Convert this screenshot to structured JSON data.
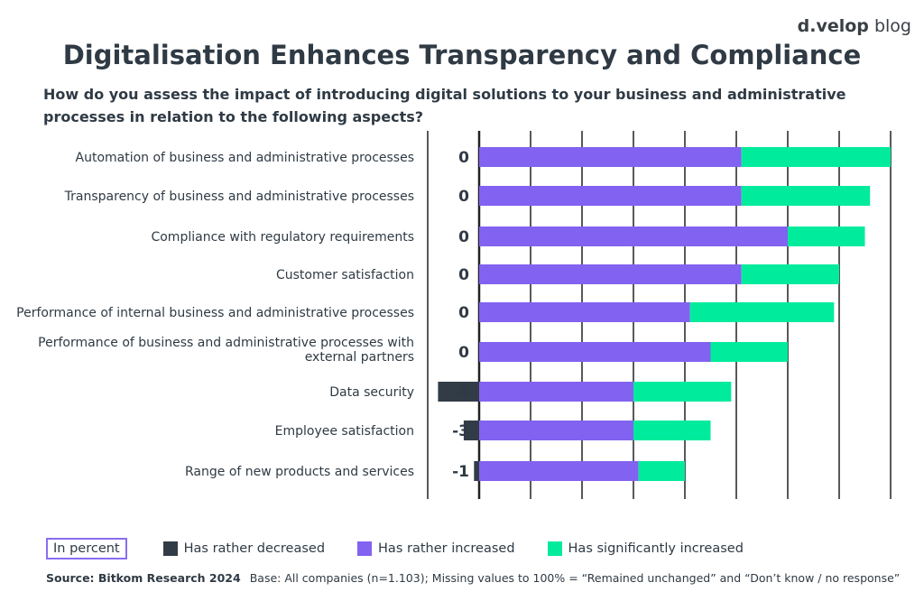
{
  "brand": {
    "logo_text_bold": "d.velop",
    "logo_text": "blog"
  },
  "colors": {
    "decreased": "#323c46",
    "rather_increased": "#8262f0",
    "significantly_increased": "#00eb9c",
    "grid": "#222222"
  },
  "legend": {
    "in_percent": "In percent",
    "items": [
      "Has rather decreased",
      "Has rather increased",
      "Has significantly increased"
    ]
  },
  "source": {
    "label": "Source: Bitkom Research 2024",
    "note": "Base: All companies (n=1.103); Missing values to 100% = “Remained unchanged” and “Don’t know / no response”"
  },
  "chart_data": {
    "type": "bar",
    "orientation": "horizontal-stacked-diverging",
    "title": "Digitalisation Enhances Transparency and Compliance",
    "subtitle": "How do you assess the impact of introducing digital solutions to your business and administrative processes in relation to the following aspects?",
    "xlim": [
      -10,
      80
    ],
    "grid": true,
    "legend_placement": "bottom",
    "categories": [
      [
        "Automation of business and administrative processes"
      ],
      [
        "Transparency of business and administrative processes"
      ],
      [
        "Compliance with regulatory requirements"
      ],
      [
        "Customer satisfaction"
      ],
      [
        "Performance of internal business and administrative processes"
      ],
      [
        "Performance of business and administrative processes with",
        "external partners"
      ],
      [
        "Data security"
      ],
      [
        "Employee satisfaction"
      ],
      [
        "Range of new products and services"
      ]
    ],
    "series": [
      {
        "name": "Has rather decreased",
        "values": [
          0,
          0,
          0,
          0,
          0,
          0,
          -8,
          -3,
          -1
        ],
        "labels": [
          "0",
          "0",
          "0",
          "0",
          "0",
          "0",
          "-8",
          "-3",
          "-1"
        ]
      },
      {
        "name": "Has rather increased",
        "values": [
          51,
          51,
          60,
          51,
          41,
          45,
          30,
          30,
          31
        ]
      },
      {
        "name": "Has significantly increased",
        "values": [
          29,
          25,
          15,
          19,
          28,
          15,
          19,
          15,
          9
        ]
      }
    ]
  }
}
